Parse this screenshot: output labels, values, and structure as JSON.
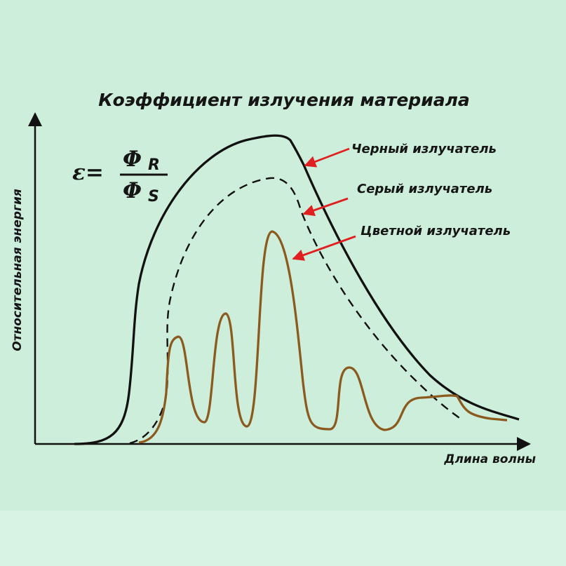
{
  "title": "Коэффициент излучения материала",
  "y_axis_label": "Относительная энергия",
  "x_axis_label": "Длина волны",
  "formula": {
    "lhs": "ε=",
    "numerator": "Φ",
    "numerator_sub": "R",
    "denominator": "Φ",
    "denominator_sub": "S"
  },
  "curves": {
    "black": "Черный излучатель",
    "gray": "Серый излучатель",
    "colored": "Цветной излучатель"
  },
  "colors": {
    "background": "#cdeedb",
    "black_curve": "#111111",
    "colored_curve": "#8b5a1e",
    "arrow": "#e02020"
  }
}
